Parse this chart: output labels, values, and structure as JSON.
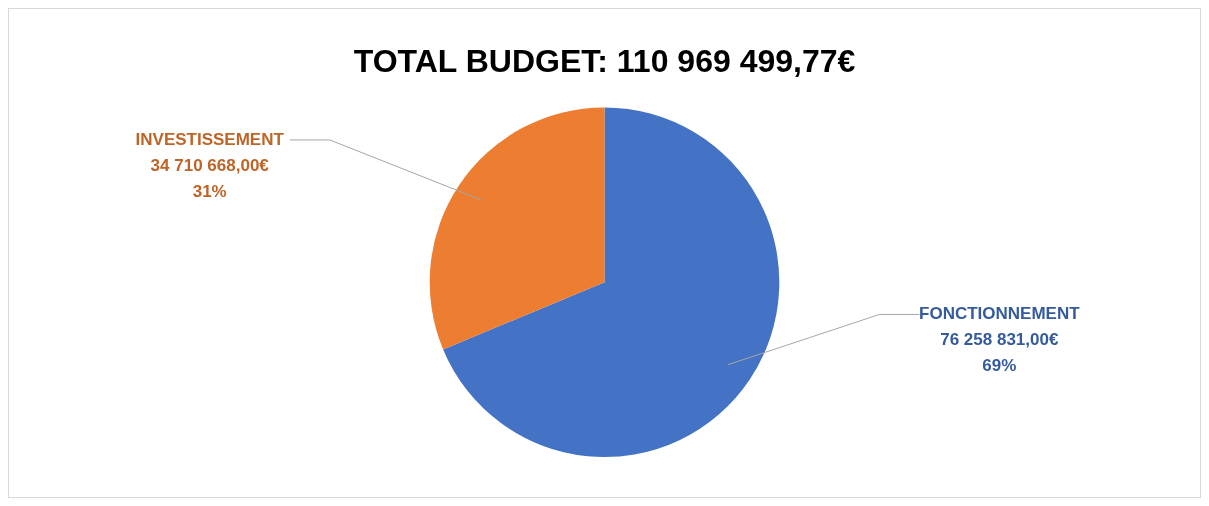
{
  "chart_data": {
    "type": "pie",
    "title": "TOTAL BUDGET: 110 969 499,77€",
    "categories": [
      "FONCTIONNEMENT",
      "INVESTISSEMENT"
    ],
    "values": [
      76258831.0,
      34710668.0
    ],
    "colors": [
      "#4472c4",
      "#ed7d31"
    ],
    "value_labels": [
      "76 258 831,00€\n69%",
      "34 710 668,00€\n31%"
    ],
    "legend": false
  }
}
